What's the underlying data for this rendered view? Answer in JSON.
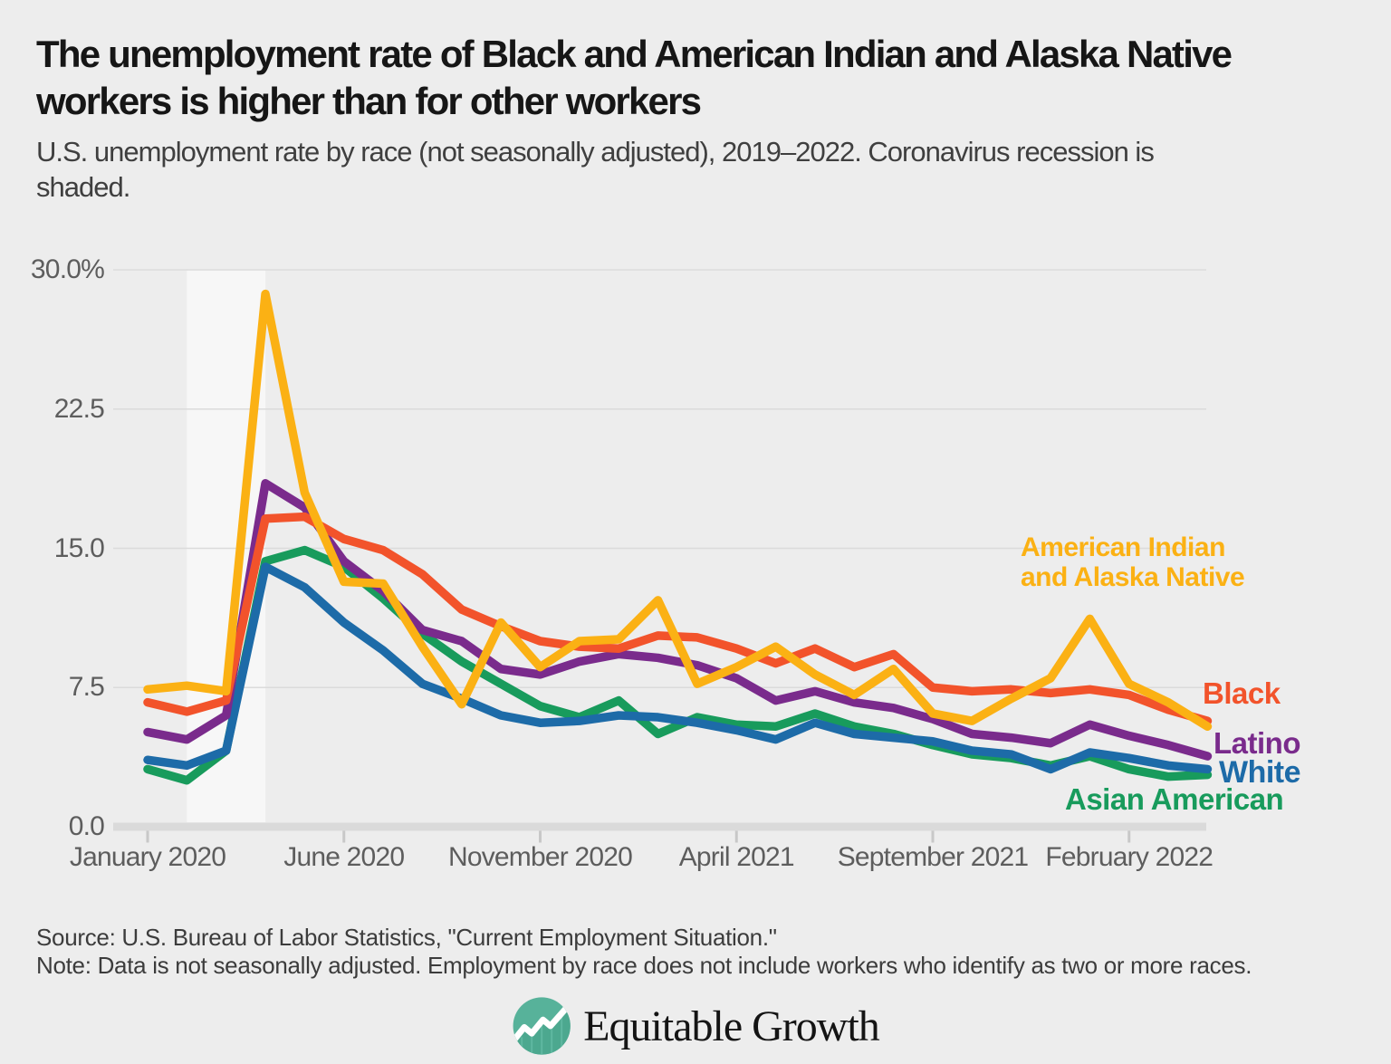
{
  "header": {
    "title": "The unemployment rate of Black and American Indian and Alaska Native workers is higher than for other workers",
    "subtitle": "U.S. unemployment rate by race (not seasonally adjusted), 2019–2022. Coronavirus recession is shaded."
  },
  "chart_data": {
    "type": "line",
    "title": "The unemployment rate of Black and American Indian and Alaska Native workers is higher than for other workers",
    "subtitle": "U.S. unemployment rate by race (not seasonally adjusted), 2019–2022. Coronavirus recession is shaded.",
    "unit": "%",
    "ylim": [
      0,
      30
    ],
    "grid": "horizontal",
    "legend_position": "inline-right",
    "x": [
      "January 2020",
      "February 2020",
      "March 2020",
      "April 2020",
      "May 2020",
      "June 2020",
      "July 2020",
      "August 2020",
      "September 2020",
      "October 2020",
      "November 2020",
      "December 2020",
      "January 2021",
      "February 2021",
      "March 2021",
      "April 2021",
      "May 2021",
      "June 2021",
      "July 2021",
      "August 2021",
      "September 2021",
      "October 2021",
      "November 2021",
      "December 2021",
      "January 2022",
      "February 2022",
      "March 2022",
      "April 2022"
    ],
    "y_ticks": [
      {
        "label": "30.0%",
        "value": 30
      },
      {
        "label": "22.5",
        "value": 22.5
      },
      {
        "label": "15.0",
        "value": 15
      },
      {
        "label": "7.5",
        "value": 7.5
      },
      {
        "label": "0.0",
        "value": 0
      }
    ],
    "x_ticks": [
      {
        "label": "January 2020",
        "month_index": 0
      },
      {
        "label": "June 2020",
        "month_index": 5
      },
      {
        "label": "November 2020",
        "month_index": 10
      },
      {
        "label": "April 2021",
        "month_index": 15
      },
      {
        "label": "September 2021",
        "month_index": 20
      },
      {
        "label": "February 2022",
        "month_index": 25
      }
    ],
    "recession_shading": {
      "description": "Coronavirus recession",
      "from_month": "February 2020",
      "to_month": "April 2020",
      "from_index": 1,
      "to_index": 3,
      "color": "#F7F7F7"
    },
    "series": [
      {
        "id": "asian-american",
        "name": "Asian American",
        "label": "Asian American",
        "color": "#189B5C",
        "values": [
          3.1,
          2.5,
          4.1,
          14.3,
          14.9,
          14.0,
          12.3,
          10.4,
          8.9,
          7.7,
          6.5,
          5.9,
          6.8,
          5.0,
          5.9,
          5.5,
          5.4,
          6.1,
          5.4,
          5.0,
          4.4,
          3.9,
          3.7,
          3.3,
          3.8,
          3.1,
          2.7,
          2.8
        ]
      },
      {
        "id": "white",
        "name": "White",
        "label": "White",
        "color": "#1D6BA8",
        "values": [
          3.6,
          3.3,
          4.1,
          14.0,
          12.9,
          11.0,
          9.5,
          7.7,
          6.9,
          6.0,
          5.6,
          5.7,
          6.0,
          5.9,
          5.6,
          5.2,
          4.7,
          5.6,
          5.0,
          4.8,
          4.6,
          4.1,
          3.9,
          3.1,
          4.0,
          3.7,
          3.3,
          3.1
        ]
      },
      {
        "id": "latino",
        "name": "Latino",
        "label": "Latino",
        "color": "#7A2B8C",
        "values": [
          5.1,
          4.7,
          6.0,
          18.5,
          17.2,
          14.3,
          12.7,
          10.6,
          10.0,
          8.5,
          8.2,
          8.9,
          9.3,
          9.1,
          8.7,
          8.0,
          6.8,
          7.3,
          6.7,
          6.4,
          5.8,
          5.0,
          4.8,
          4.5,
          5.5,
          4.9,
          4.4,
          3.8
        ]
      },
      {
        "id": "black",
        "name": "Black",
        "label": "Black",
        "color": "#F2532B",
        "values": [
          6.7,
          6.2,
          6.8,
          16.6,
          16.7,
          15.5,
          14.9,
          13.6,
          11.7,
          10.8,
          10.0,
          9.7,
          9.6,
          10.3,
          10.2,
          9.6,
          8.8,
          9.6,
          8.6,
          9.3,
          7.5,
          7.3,
          7.4,
          7.2,
          7.4,
          7.1,
          6.3,
          5.7
        ]
      },
      {
        "id": "american-indian-alaska-native",
        "name": "American Indian and Alaska Native",
        "label": "American Indian\nand Alaska Native",
        "color": "#FBB114",
        "values": [
          7.4,
          7.6,
          7.3,
          28.7,
          18.0,
          13.2,
          13.1,
          9.7,
          6.6,
          11.0,
          8.6,
          10.0,
          10.1,
          12.2,
          7.7,
          8.6,
          9.7,
          8.2,
          7.1,
          8.5,
          6.1,
          5.7,
          6.9,
          8.0,
          11.2,
          7.7,
          6.7,
          5.4
        ]
      }
    ]
  },
  "footer": {
    "source": "Source: U.S. Bureau of Labor Statistics, \"Current Employment Situation.\"",
    "note": "Note: Data is not seasonally adjusted. Employment by race does not include workers who identify as two or more races."
  },
  "logo": {
    "text": "Equitable Growth",
    "icon": "trend-line-circle-icon",
    "icon_color": "#57B29A"
  }
}
